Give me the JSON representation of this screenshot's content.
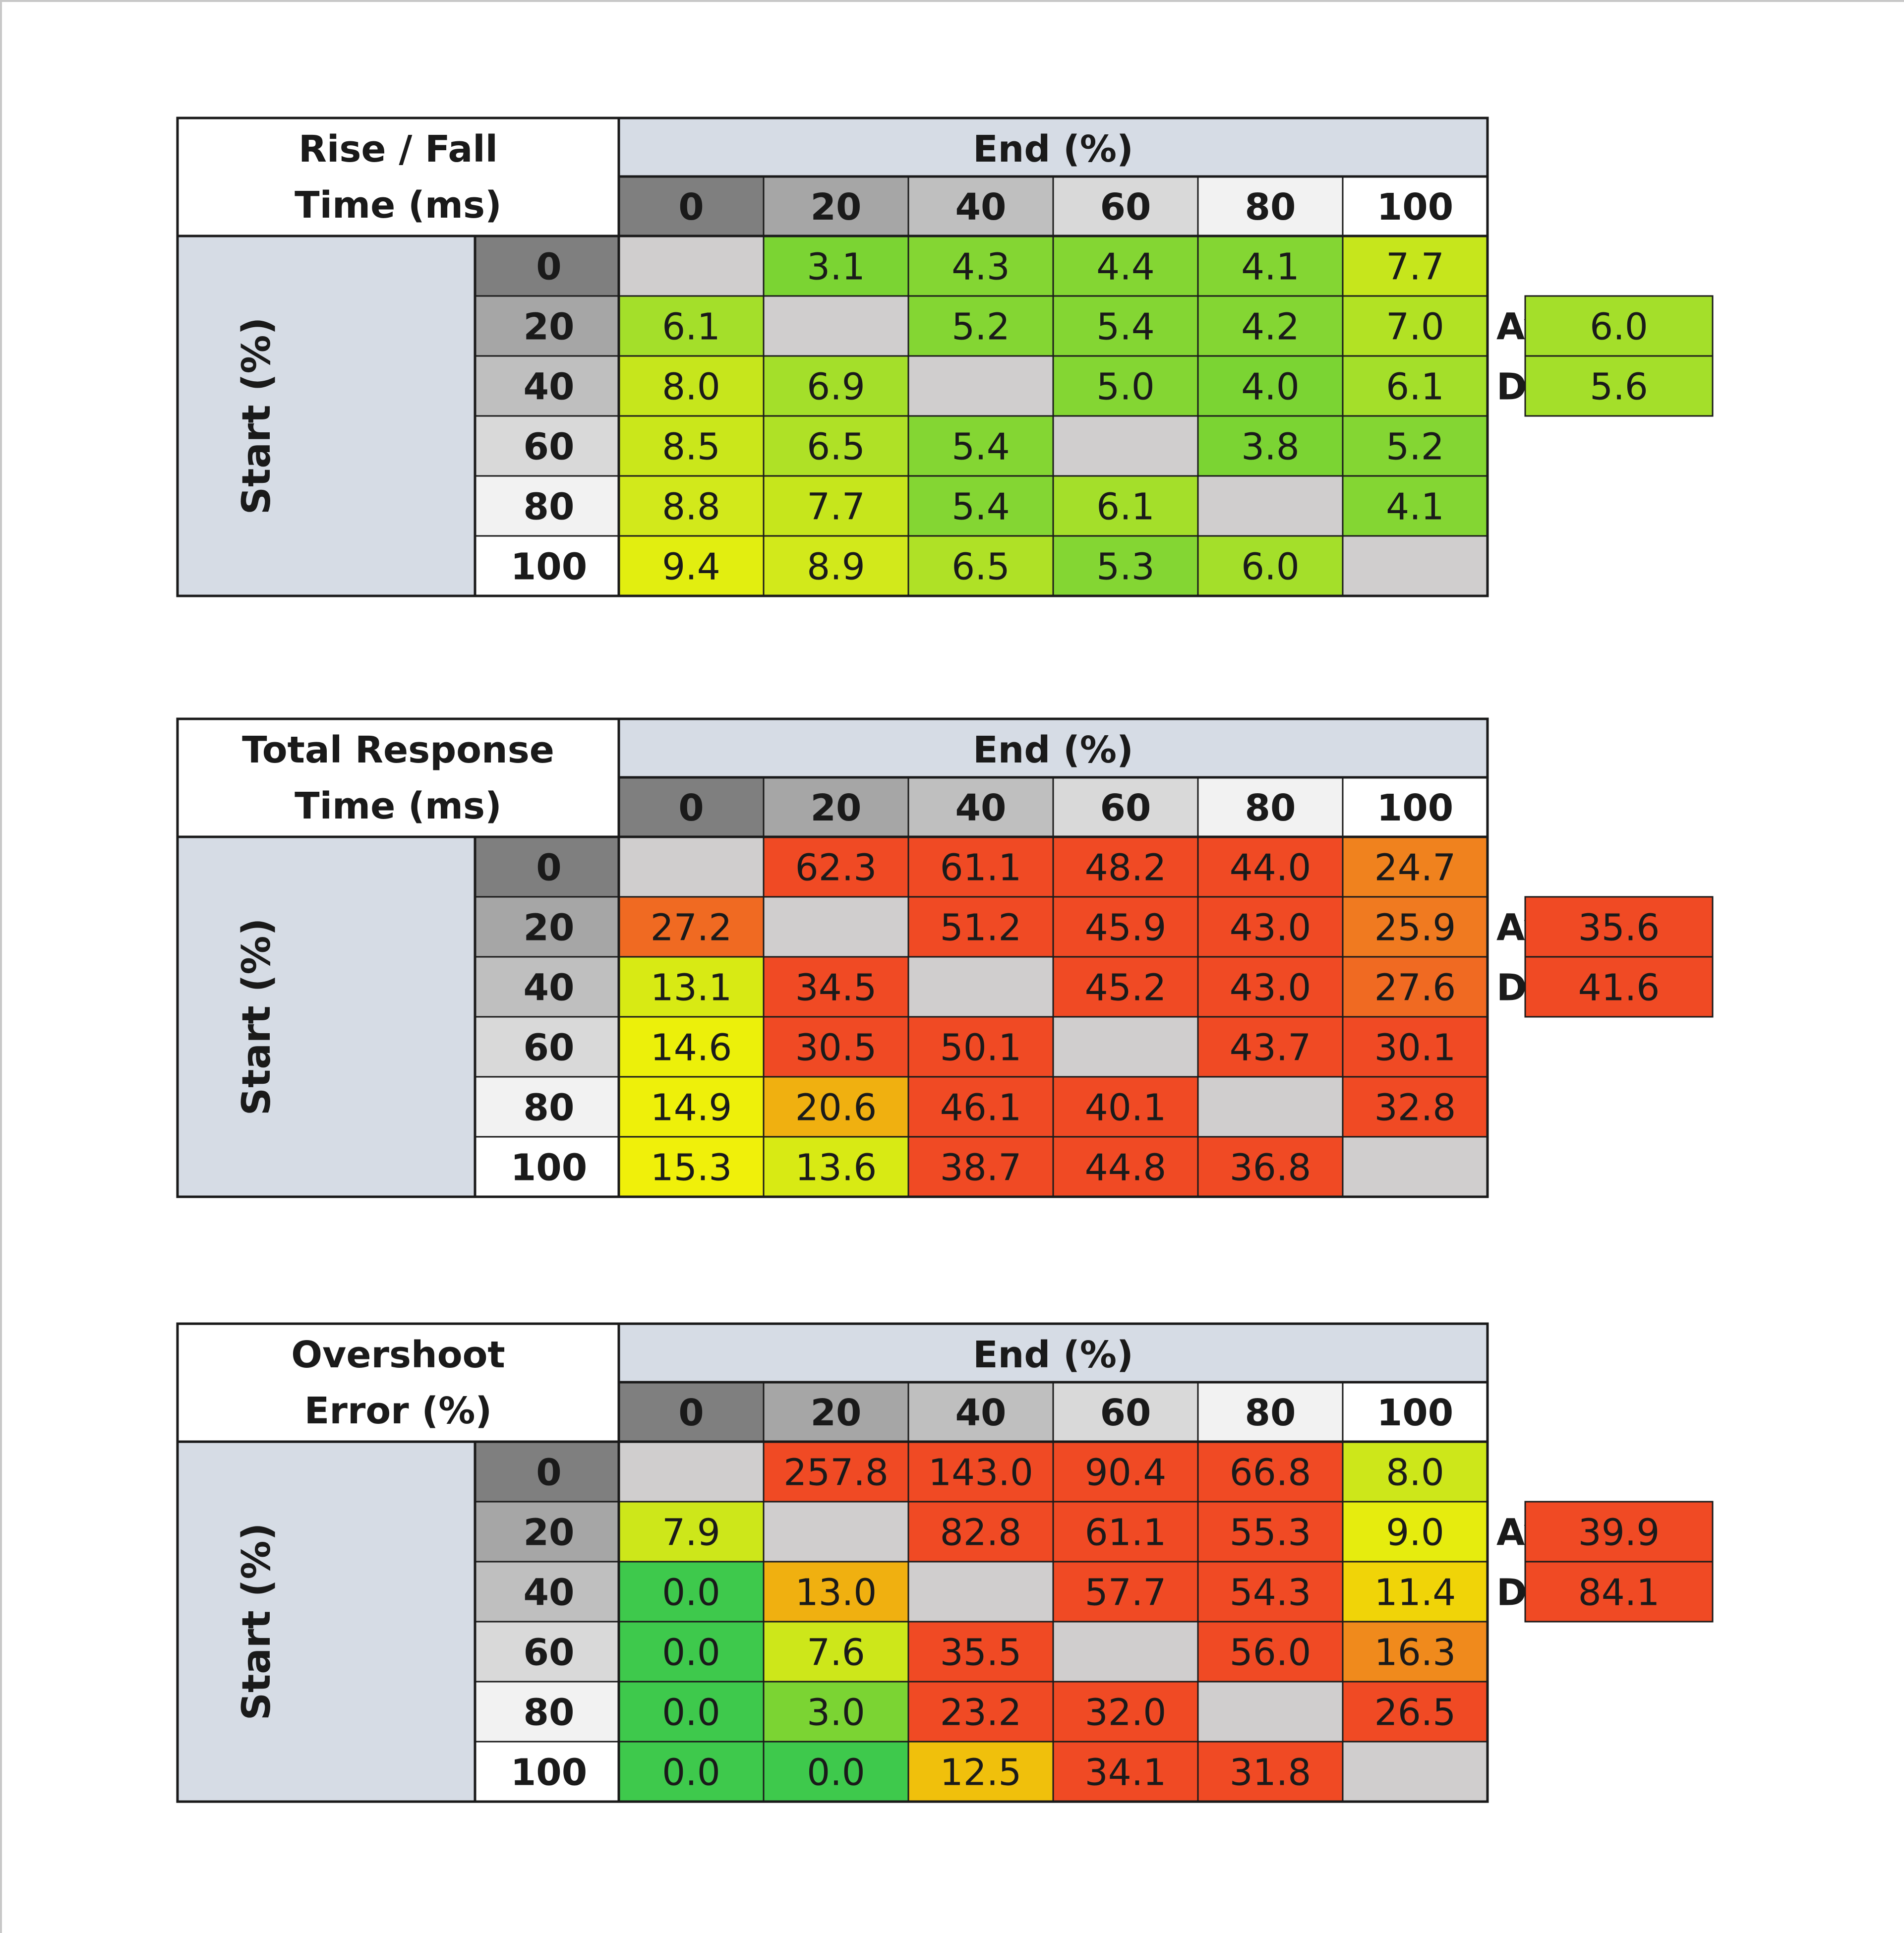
{
  "chart_data": [
    {
      "type": "heatmap",
      "title_lines": [
        "Rise / Fall",
        "Time (ms)"
      ],
      "xlabel": "End (%)",
      "ylabel": "Start (%)",
      "columns": [
        "0",
        "20",
        "40",
        "60",
        "80",
        "100"
      ],
      "rows": [
        "0",
        "20",
        "40",
        "60",
        "80",
        "100"
      ],
      "values": [
        [
          null,
          3.1,
          4.3,
          4.4,
          4.1,
          7.7
        ],
        [
          6.1,
          null,
          5.2,
          5.4,
          4.2,
          7.0
        ],
        [
          8.0,
          6.9,
          null,
          5.0,
          4.0,
          6.1
        ],
        [
          8.5,
          6.5,
          5.4,
          null,
          3.8,
          5.2
        ],
        [
          8.8,
          7.7,
          5.4,
          6.1,
          null,
          4.1
        ],
        [
          9.4,
          8.9,
          6.5,
          5.3,
          6.0,
          null
        ]
      ],
      "labels": [
        [
          "",
          "3.1",
          "4.3",
          "4.4",
          "4.1",
          "7.7"
        ],
        [
          "6.1",
          "",
          "5.2",
          "5.4",
          "4.2",
          "7.0"
        ],
        [
          "8.0",
          "6.9",
          "",
          "5.0",
          "4.0",
          "6.1"
        ],
        [
          "8.5",
          "6.5",
          "5.4",
          "",
          "3.8",
          "5.2"
        ],
        [
          "8.8",
          "7.7",
          "5.4",
          "6.1",
          "",
          "4.1"
        ],
        [
          "9.4",
          "8.9",
          "6.5",
          "5.3",
          "6.0",
          ""
        ]
      ],
      "cell_colors": [
        [
          "#d0cece",
          "#7bd433",
          "#84d633",
          "#84d633",
          "#84d633",
          "#c6e61c"
        ],
        [
          "#a4df2a",
          "#d0cece",
          "#84d633",
          "#84d633",
          "#84d633",
          "#b2e224"
        ],
        [
          "#c6e61c",
          "#a4df2a",
          "#d0cece",
          "#84d633",
          "#7bd433",
          "#a4df2a"
        ],
        [
          "#cae71b",
          "#afe126",
          "#84d633",
          "#d0cece",
          "#7bd433",
          "#84d633"
        ],
        [
          "#d2e91b",
          "#c6e61c",
          "#84d633",
          "#a4df2a",
          "#d0cece",
          "#84d633"
        ],
        [
          "#e2ee10",
          "#d2e91b",
          "#afe126",
          "#84d633",
          "#a4df2a",
          "#d0cece"
        ]
      ],
      "summary": [
        {
          "label": "Avg:",
          "value": "6.0",
          "color": "#a4df2a"
        },
        {
          "label": "Dark Avg:",
          "value": "5.6",
          "color": "#a4df2a"
        }
      ]
    },
    {
      "type": "heatmap",
      "title_lines": [
        "Total Response",
        "Time (ms)"
      ],
      "xlabel": "End (%)",
      "ylabel": "Start (%)",
      "columns": [
        "0",
        "20",
        "40",
        "60",
        "80",
        "100"
      ],
      "rows": [
        "0",
        "20",
        "40",
        "60",
        "80",
        "100"
      ],
      "values": [
        [
          null,
          62.3,
          61.1,
          48.2,
          44.0,
          24.7
        ],
        [
          27.2,
          null,
          51.2,
          45.9,
          43.0,
          25.9
        ],
        [
          13.1,
          34.5,
          null,
          45.2,
          43.0,
          27.6
        ],
        [
          14.6,
          30.5,
          50.1,
          null,
          43.7,
          30.1
        ],
        [
          14.9,
          20.6,
          46.1,
          40.1,
          null,
          32.8
        ],
        [
          15.3,
          13.6,
          38.7,
          44.8,
          36.8,
          null
        ]
      ],
      "labels": [
        [
          "",
          "62.3",
          "61.1",
          "48.2",
          "44.0",
          "24.7"
        ],
        [
          "27.2",
          "",
          "51.2",
          "45.9",
          "43.0",
          "25.9"
        ],
        [
          "13.1",
          "34.5",
          "",
          "45.2",
          "43.0",
          "27.6"
        ],
        [
          "14.6",
          "30.5",
          "50.1",
          "",
          "43.7",
          "30.1"
        ],
        [
          "14.9",
          "20.6",
          "46.1",
          "40.1",
          "",
          "32.8"
        ],
        [
          "15.3",
          "13.6",
          "38.7",
          "44.8",
          "36.8",
          ""
        ]
      ],
      "cell_colors": [
        [
          "#d0cece",
          "#f04a24",
          "#f04a24",
          "#f04a24",
          "#f04a24",
          "#f0821e"
        ],
        [
          "#f06a22",
          "#d0cece",
          "#f04a24",
          "#f04a24",
          "#f04a24",
          "#f07a20"
        ],
        [
          "#d8ea14",
          "#f04a24",
          "#d0cece",
          "#f04a24",
          "#f04a24",
          "#f06a22"
        ],
        [
          "#ecf00a",
          "#f04a24",
          "#f04a24",
          "#d0cece",
          "#f04a24",
          "#f04a24"
        ],
        [
          "#eef00a",
          "#f0b010",
          "#f04a24",
          "#f04a24",
          "#d0cece",
          "#f04a24"
        ],
        [
          "#f0f00a",
          "#d8ea14",
          "#f04a24",
          "#f04a24",
          "#f04a24",
          "#d0cece"
        ]
      ],
      "summary": [
        {
          "label": "Avg:",
          "value": "35.6",
          "color": "#f04a24"
        },
        {
          "label": "Dark Avg:",
          "value": "41.6",
          "color": "#f04a24"
        }
      ]
    },
    {
      "type": "heatmap",
      "title_lines": [
        "Overshoot",
        "Error (%)"
      ],
      "xlabel": "End (%)",
      "ylabel": "Start (%)",
      "columns": [
        "0",
        "20",
        "40",
        "60",
        "80",
        "100"
      ],
      "rows": [
        "0",
        "20",
        "40",
        "60",
        "80",
        "100"
      ],
      "values": [
        [
          null,
          257.8,
          143.0,
          90.4,
          66.8,
          8.0
        ],
        [
          7.9,
          null,
          82.8,
          61.1,
          55.3,
          9.0
        ],
        [
          0.0,
          13.0,
          null,
          57.7,
          54.3,
          11.4
        ],
        [
          0.0,
          7.6,
          35.5,
          null,
          56.0,
          16.3
        ],
        [
          0.0,
          3.0,
          23.2,
          32.0,
          null,
          26.5
        ],
        [
          0.0,
          0.0,
          12.5,
          34.1,
          31.8,
          null
        ]
      ],
      "labels": [
        [
          "",
          "257.8",
          "143.0",
          "90.4",
          "66.8",
          "8.0"
        ],
        [
          "7.9",
          "",
          "82.8",
          "61.1",
          "55.3",
          "9.0"
        ],
        [
          "0.0",
          "13.0",
          "",
          "57.7",
          "54.3",
          "11.4"
        ],
        [
          "0.0",
          "7.6",
          "35.5",
          "",
          "56.0",
          "16.3"
        ],
        [
          "0.0",
          "3.0",
          "23.2",
          "32.0",
          "",
          "26.5"
        ],
        [
          "0.0",
          "0.0",
          "12.5",
          "34.1",
          "31.8",
          ""
        ]
      ],
      "cell_colors": [
        [
          "#d0cece",
          "#f04a24",
          "#f04a24",
          "#f04a24",
          "#f04a24",
          "#cde71a"
        ],
        [
          "#cde71a",
          "#d0cece",
          "#f04a24",
          "#f04a24",
          "#f04a24",
          "#e6ec0e"
        ],
        [
          "#3ec94c",
          "#f0b010",
          "#d0cece",
          "#f04a24",
          "#f04a24",
          "#f0d408"
        ],
        [
          "#3ec94c",
          "#cde71a",
          "#f04a24",
          "#d0cece",
          "#f04a24",
          "#f08a1c"
        ],
        [
          "#3ec94c",
          "#7bd433",
          "#f04a24",
          "#f04a24",
          "#d0cece",
          "#f04a24"
        ],
        [
          "#3ec94c",
          "#3ec94c",
          "#f0c00c",
          "#f04a24",
          "#f04a24",
          "#d0cece"
        ]
      ],
      "summary": [
        {
          "label": "Avg:",
          "value": "39.9",
          "color": "#f04a24"
        },
        {
          "label": "Dark Avg:",
          "value": "84.1",
          "color": "#f04a24"
        }
      ]
    }
  ],
  "header_shades": [
    "#7f7f7f",
    "#a6a6a6",
    "#bfbfbf",
    "#d9d9d9",
    "#f2f2f2",
    "#ffffff"
  ],
  "band_color": "#d6dce5",
  "empty_color": "#d0cece"
}
